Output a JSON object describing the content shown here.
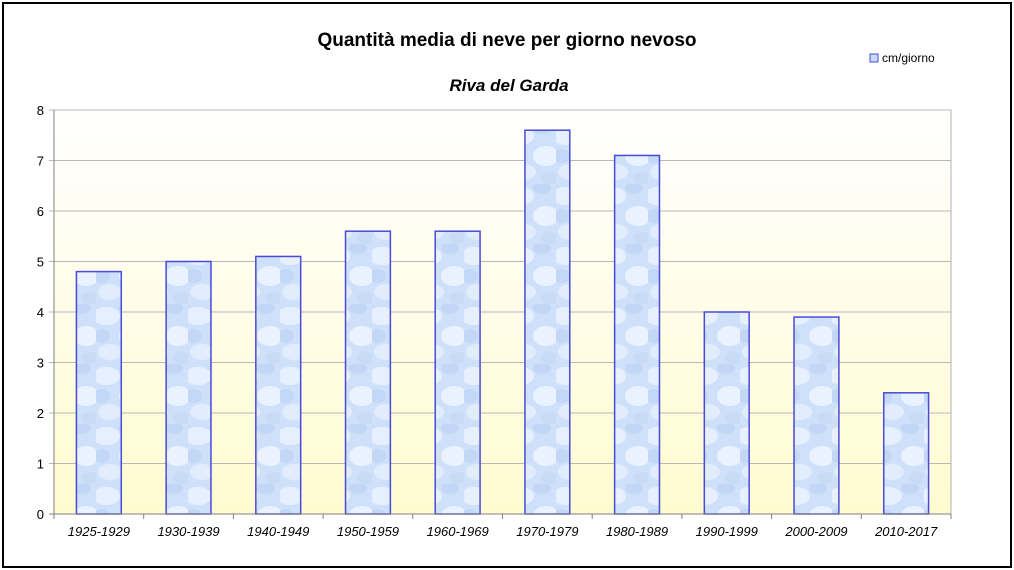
{
  "chart_data": {
    "type": "bar",
    "title": "Quantità media di neve per giorno nevoso",
    "subtitle": "Riva del Garda",
    "xlabel": "",
    "ylabel": "",
    "categories": [
      "1925-1929",
      "1930-1939",
      "1940-1949",
      "1950-1959",
      "1960-1969",
      "1970-1979",
      "1980-1989",
      "1990-1999",
      "2000-2009",
      "2010-2017"
    ],
    "series": [
      {
        "name": "cm/giorno",
        "values": [
          4.8,
          5.0,
          5.1,
          5.6,
          5.6,
          7.6,
          7.1,
          4.0,
          3.9,
          2.4
        ]
      }
    ],
    "ylim": [
      0,
      8
    ],
    "yticks": [
      "0",
      "1",
      "2",
      "3",
      "4",
      "5",
      "6",
      "7",
      "8"
    ],
    "grid": true,
    "legend": "top-right",
    "colors": {
      "bar_fill_light": "#e8f1ff",
      "bar_fill_dark": "#bcd6f6",
      "bar_stroke": "#4a4ad8",
      "plot_bg_top": "#ffffff",
      "plot_bg_bottom": "#fffbd0",
      "grid": "#b8b8b8"
    }
  }
}
